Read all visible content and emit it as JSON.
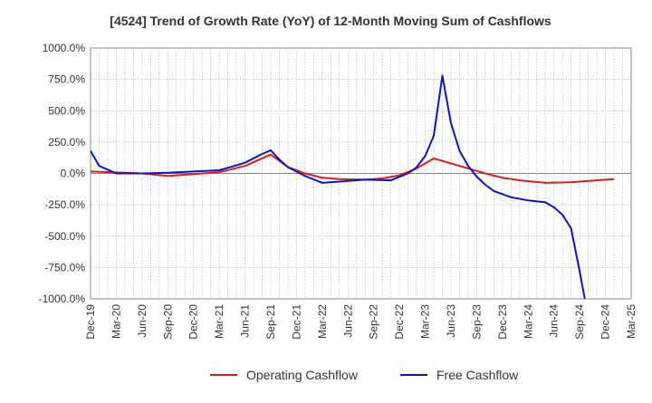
{
  "chart_data": {
    "type": "line",
    "title": "[4524]  Trend of Growth Rate (YoY) of 12-Month Moving Sum of Cashflows",
    "xlabel": "",
    "ylabel": "",
    "ylim": [
      -1000,
      1000
    ],
    "yticks": [
      1000,
      750,
      500,
      250,
      0,
      -250,
      -500,
      -750,
      -1000
    ],
    "ytick_labels": [
      "1000.0%",
      "750.0%",
      "500.0%",
      "250.0%",
      "0.0%",
      "-250.0%",
      "-500.0%",
      "-750.0%",
      "-1000.0%"
    ],
    "x_start": "Dec-19",
    "x_months": 63,
    "xtick_labels": [
      "Dec-19",
      "Mar-20",
      "Jun-20",
      "Sep-20",
      "Dec-20",
      "Mar-21",
      "Jun-21",
      "Sep-21",
      "Dec-21",
      "Mar-22",
      "Jun-22",
      "Sep-22",
      "Dec-22",
      "Mar-23",
      "Jun-23",
      "Sep-23",
      "Dec-23",
      "Mar-24",
      "Jun-24",
      "Sep-24",
      "Dec-24",
      "Mar-25"
    ],
    "grid": true,
    "legend_position": "bottom-center",
    "series": [
      {
        "name": "Operating Cashflow",
        "color": "#e31a1c",
        "points": [
          [
            0,
            15
          ],
          [
            3,
            8
          ],
          [
            6,
            0
          ],
          [
            9,
            -20
          ],
          [
            12,
            -5
          ],
          [
            15,
            10
          ],
          [
            18,
            60
          ],
          [
            21,
            150
          ],
          [
            23,
            50
          ],
          [
            25,
            0
          ],
          [
            27,
            -35
          ],
          [
            29,
            -45
          ],
          [
            32,
            -50
          ],
          [
            34,
            -40
          ],
          [
            36,
            -15
          ],
          [
            38,
            40
          ],
          [
            40,
            120
          ],
          [
            42,
            80
          ],
          [
            44,
            40
          ],
          [
            46,
            0
          ],
          [
            48,
            -35
          ],
          [
            50,
            -55
          ],
          [
            53,
            -75
          ],
          [
            56,
            -70
          ],
          [
            59,
            -55
          ],
          [
            61,
            -45
          ]
        ]
      },
      {
        "name": "Free Cashflow",
        "color": "#0a14c8",
        "points": [
          [
            0,
            180
          ],
          [
            1,
            60
          ],
          [
            3,
            0
          ],
          [
            6,
            0
          ],
          [
            9,
            5
          ],
          [
            12,
            15
          ],
          [
            15,
            25
          ],
          [
            18,
            85
          ],
          [
            20,
            155
          ],
          [
            21,
            185
          ],
          [
            22,
            110
          ],
          [
            23,
            50
          ],
          [
            25,
            -20
          ],
          [
            27,
            -75
          ],
          [
            29,
            -65
          ],
          [
            32,
            -50
          ],
          [
            35,
            -55
          ],
          [
            37,
            0
          ],
          [
            38,
            50
          ],
          [
            39,
            140
          ],
          [
            40,
            300
          ],
          [
            41,
            780
          ],
          [
            42,
            400
          ],
          [
            43,
            180
          ],
          [
            44,
            60
          ],
          [
            45,
            -25
          ],
          [
            46,
            -90
          ],
          [
            47,
            -140
          ],
          [
            49,
            -190
          ],
          [
            51,
            -215
          ],
          [
            53,
            -230
          ],
          [
            54,
            -270
          ],
          [
            55,
            -330
          ],
          [
            56,
            -440
          ],
          [
            57,
            -780
          ],
          [
            57.6,
            -1000
          ]
        ]
      }
    ]
  }
}
